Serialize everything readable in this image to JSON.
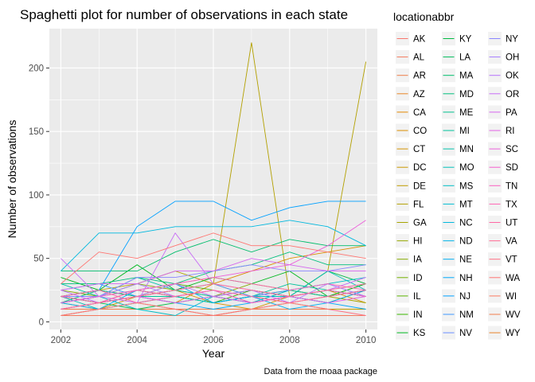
{
  "chart_data": {
    "type": "line",
    "title": "Spaghetti plot for number of observations in each state",
    "xlabel": "Year",
    "ylabel": "Number of observations",
    "caption": "Data from the rnoaa package",
    "legend_title": "locationabbr",
    "legend_placement": "right",
    "grid": true,
    "x": [
      2002,
      2003,
      2004,
      2005,
      2006,
      2007,
      2008,
      2009,
      2010
    ],
    "x_ticks": [
      2002,
      2004,
      2006,
      2008,
      2010
    ],
    "y_ticks": [
      0,
      50,
      100,
      150,
      200
    ],
    "xlim": [
      2001.7,
      2010.3
    ],
    "ylim": [
      -6,
      231
    ],
    "series": [
      {
        "name": "AK",
        "color": "#F8766D",
        "values": [
          null,
          null,
          null,
          null,
          null,
          null,
          null,
          null,
          null
        ]
      },
      {
        "name": "AL",
        "color": "#F47A5D",
        "values": [
          5,
          5,
          5,
          5,
          5,
          5,
          5,
          5,
          5
        ]
      },
      {
        "name": "AR",
        "color": "#EE7F4B",
        "values": [
          10,
          10,
          10,
          10,
          10,
          10,
          10,
          10,
          10
        ]
      },
      {
        "name": "AZ",
        "color": "#E88526",
        "values": [
          10,
          15,
          20,
          25,
          30,
          20,
          15,
          20,
          25
        ]
      },
      {
        "name": "CA",
        "color": "#E38900",
        "values": [
          null,
          null,
          null,
          null,
          null,
          null,
          null,
          null,
          null
        ]
      },
      {
        "name": "CO",
        "color": "#DB8E00",
        "values": [
          20,
          25,
          20,
          15,
          30,
          40,
          50,
          55,
          60
        ]
      },
      {
        "name": "CT",
        "color": "#D39200",
        "values": [
          15,
          10,
          20,
          25,
          15,
          10,
          20,
          25,
          15
        ]
      },
      {
        "name": "DC",
        "color": "#C99800",
        "values": [
          null,
          null,
          null,
          null,
          null,
          null,
          null,
          null,
          null
        ]
      },
      {
        "name": "DE",
        "color": "#BF9C00",
        "values": [
          5,
          10,
          15,
          10,
          5,
          10,
          15,
          10,
          10
        ]
      },
      {
        "name": "FL",
        "color": "#B3A000",
        "values": [
          20,
          25,
          30,
          40,
          30,
          220,
          20,
          40,
          205
        ]
      },
      {
        "name": "GA",
        "color": "#A6A400",
        "values": [
          15,
          20,
          25,
          20,
          15,
          20,
          25,
          20,
          15
        ]
      },
      {
        "name": "HI",
        "color": "#97A800",
        "values": [
          null,
          null,
          null,
          null,
          null,
          null,
          null,
          null,
          null
        ]
      },
      {
        "name": "IA",
        "color": "#86AC00",
        "values": [
          25,
          20,
          30,
          25,
          20,
          30,
          25,
          20,
          30
        ]
      },
      {
        "name": "ID",
        "color": "#72B000",
        "values": [
          null,
          null,
          null,
          null,
          null,
          null,
          null,
          null,
          null
        ]
      },
      {
        "name": "IL",
        "color": "#5BB300",
        "values": [
          15,
          25,
          20,
          30,
          25,
          15,
          20,
          25,
          20
        ]
      },
      {
        "name": "IN",
        "color": "#39B600",
        "values": [
          20,
          15,
          25,
          20,
          15,
          25,
          20,
          15,
          25
        ]
      },
      {
        "name": "KS",
        "color": "#00B81F",
        "values": [
          35,
          25,
          45,
          25,
          35,
          30,
          40,
          20,
          30
        ]
      },
      {
        "name": "KY",
        "color": "#00BA42",
        "values": [
          20,
          15,
          10,
          15,
          20,
          25,
          20,
          40,
          30
        ]
      },
      {
        "name": "LA",
        "color": "#00BC59",
        "values": [
          null,
          null,
          null,
          null,
          null,
          null,
          null,
          null,
          null
        ]
      },
      {
        "name": "MA",
        "color": "#00BD6C",
        "values": [
          40,
          40,
          40,
          55,
          65,
          55,
          65,
          60,
          60
        ]
      },
      {
        "name": "MD",
        "color": "#00BF7D",
        "values": [
          30,
          30,
          35,
          30,
          40,
          45,
          55,
          45,
          45
        ]
      },
      {
        "name": "ME",
        "color": "#00C08D",
        "values": [
          null,
          null,
          null,
          null,
          null,
          null,
          null,
          null,
          null
        ]
      },
      {
        "name": "MI",
        "color": "#00C19C",
        "values": [
          15,
          25,
          20,
          20,
          15,
          20,
          30,
          25,
          20
        ]
      },
      {
        "name": "MN",
        "color": "#00C1AA",
        "values": [
          30,
          20,
          35,
          25,
          20,
          15,
          25,
          20,
          25
        ]
      },
      {
        "name": "MO",
        "color": "#00C0B8",
        "values": [
          20,
          10,
          15,
          20,
          15,
          20,
          20,
          40,
          25
        ]
      },
      {
        "name": "MS",
        "color": "#00BEC5",
        "values": [
          15,
          20,
          10,
          5,
          20,
          15,
          25,
          30,
          35
        ]
      },
      {
        "name": "MT",
        "color": "#00BCD2",
        "values": [
          null,
          null,
          null,
          null,
          null,
          null,
          null,
          null,
          null
        ]
      },
      {
        "name": "NC",
        "color": "#00B8DE",
        "values": [
          40,
          70,
          70,
          75,
          75,
          75,
          80,
          75,
          60
        ]
      },
      {
        "name": "ND",
        "color": "#00B4E8",
        "values": [
          null,
          null,
          null,
          null,
          null,
          null,
          null,
          null,
          null
        ]
      },
      {
        "name": "NE",
        "color": "#00AEF2",
        "values": [
          15,
          10,
          25,
          30,
          15,
          20,
          10,
          15,
          25
        ]
      },
      {
        "name": "NH",
        "color": "#00A8FA",
        "values": [
          10,
          15,
          20,
          15,
          10,
          15,
          20,
          15,
          10
        ]
      },
      {
        "name": "NJ",
        "color": "#00A0FF",
        "values": [
          20,
          25,
          75,
          95,
          95,
          80,
          90,
          95,
          95
        ]
      },
      {
        "name": "NM",
        "color": "#3E98FF",
        "values": [
          25,
          30,
          20,
          25,
          30,
          20,
          25,
          30,
          20
        ]
      },
      {
        "name": "NV",
        "color": "#6A8FFF",
        "values": [
          null,
          null,
          null,
          null,
          null,
          null,
          null,
          null,
          null
        ]
      },
      {
        "name": "NY",
        "color": "#8A86FF",
        "values": [
          20,
          20,
          35,
          35,
          40,
          45,
          40,
          40,
          45
        ]
      },
      {
        "name": "OH",
        "color": "#A57CFF",
        "values": [
          15,
          20,
          30,
          20,
          25,
          15,
          20,
          25,
          30
        ]
      },
      {
        "name": "OK",
        "color": "#B774FC",
        "values": [
          25,
          15,
          20,
          30,
          20,
          25,
          15,
          30,
          20
        ]
      },
      {
        "name": "OR",
        "color": "#C86CF6",
        "values": [
          50,
          20,
          15,
          70,
          30,
          25,
          20,
          25,
          35
        ]
      },
      {
        "name": "PA",
        "color": "#D665EE",
        "values": [
          25,
          30,
          30,
          40,
          40,
          50,
          45,
          40,
          40
        ]
      },
      {
        "name": "RI",
        "color": "#E261E5",
        "values": [
          10,
          15,
          20,
          15,
          20,
          15,
          20,
          15,
          20
        ]
      },
      {
        "name": "SC",
        "color": "#EC5FDA",
        "values": [
          15,
          20,
          25,
          30,
          35,
          40,
          45,
          60,
          80
        ]
      },
      {
        "name": "SD",
        "color": "#F45ECE",
        "values": [
          null,
          null,
          null,
          null,
          null,
          null,
          null,
          null,
          null
        ]
      },
      {
        "name": "TN",
        "color": "#FA60C1",
        "values": [
          10,
          15,
          25,
          20,
          25,
          15,
          20,
          25,
          20
        ]
      },
      {
        "name": "TX",
        "color": "#FE63B3",
        "values": [
          20,
          15,
          25,
          30,
          35,
          30,
          25,
          30,
          25
        ]
      },
      {
        "name": "UT",
        "color": "#FF67A4",
        "values": [
          20,
          25,
          15,
          20,
          25,
          20,
          15,
          20,
          25
        ]
      },
      {
        "name": "VA",
        "color": "#FF6C94",
        "values": [
          10,
          15,
          20,
          25,
          30,
          25,
          20,
          25,
          30
        ]
      },
      {
        "name": "VT",
        "color": "#FF7083",
        "values": [
          5,
          10,
          15,
          10,
          5,
          10,
          15,
          10,
          5
        ]
      },
      {
        "name": "WA",
        "color": "#FF7571",
        "values": [
          30,
          55,
          50,
          60,
          70,
          60,
          60,
          55,
          50
        ]
      },
      {
        "name": "WI",
        "color": "#FB7A5F",
        "values": [
          null,
          null,
          null,
          null,
          null,
          null,
          null,
          null,
          null
        ]
      },
      {
        "name": "WV",
        "color": "#F07F4C",
        "values": [
          null,
          null,
          null,
          null,
          null,
          null,
          null,
          null,
          null
        ]
      },
      {
        "name": "WY",
        "color": "#E8852A",
        "values": [
          null,
          null,
          null,
          null,
          null,
          null,
          null,
          null,
          null
        ]
      }
    ]
  },
  "colors": {
    "panel_background": "#EBEBEB",
    "grid_major": "#FFFFFF",
    "legend_key_background": "#F2F2F2"
  }
}
